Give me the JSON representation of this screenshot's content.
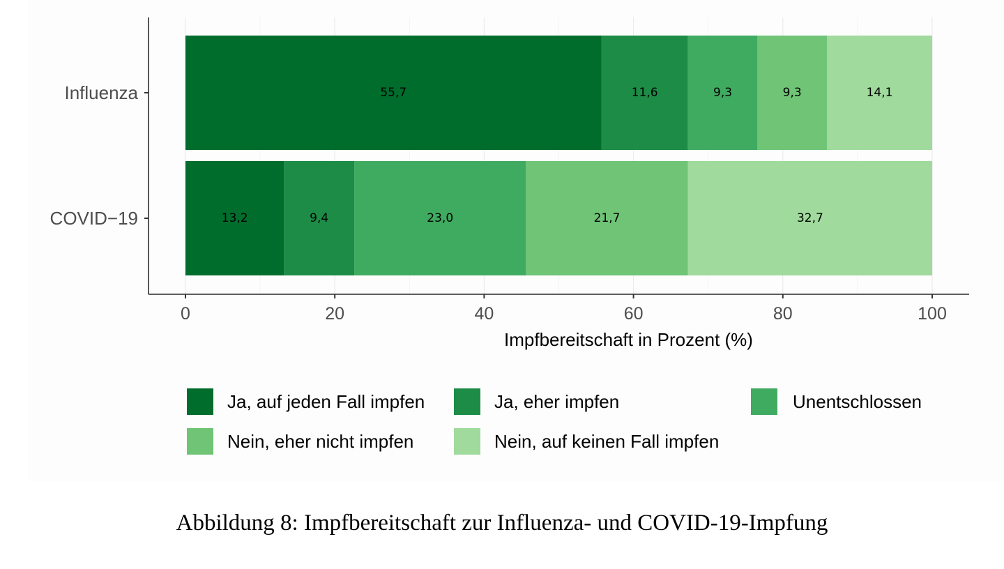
{
  "chart_data": {
    "type": "bar",
    "orientation": "horizontal",
    "stacked": true,
    "categories": [
      "Influenza",
      "COVID−19"
    ],
    "series": [
      {
        "name": "Ja, auf jeden Fall impfen",
        "color": "#006d2c",
        "values": [
          55.7,
          13.2
        ],
        "labels": [
          "55,7",
          "13,2"
        ]
      },
      {
        "name": "Ja, eher impfen",
        "color": "#1c8c47",
        "values": [
          11.6,
          9.4
        ],
        "labels": [
          "11,6",
          "9,4"
        ]
      },
      {
        "name": "Unentschlossen",
        "color": "#3fab60",
        "values": [
          9.3,
          23.0
        ],
        "labels": [
          "9,3",
          "23,0"
        ]
      },
      {
        "name": "Nein, eher nicht impfen",
        "color": "#6fc476",
        "values": [
          9.3,
          21.7
        ],
        "labels": [
          "9,3",
          "21,7"
        ]
      },
      {
        "name": "Nein, auf keinen Fall impfen",
        "color": "#a0da9c",
        "values": [
          14.1,
          32.7
        ],
        "labels": [
          "14,1",
          "32,7"
        ]
      }
    ],
    "xlabel": "Impfbereitschaft in Prozent (%)",
    "ylabel": "",
    "xlim": [
      0,
      100
    ],
    "xticks": [
      0,
      20,
      40,
      60,
      80,
      100
    ],
    "xtick_labels": [
      "0",
      "20",
      "40",
      "60",
      "80",
      "100"
    ],
    "grid": true,
    "legend_position": "bottom"
  },
  "caption": "Abbildung 8: Impfbereitschaft zur Influenza- und COVID-19-Impfung"
}
